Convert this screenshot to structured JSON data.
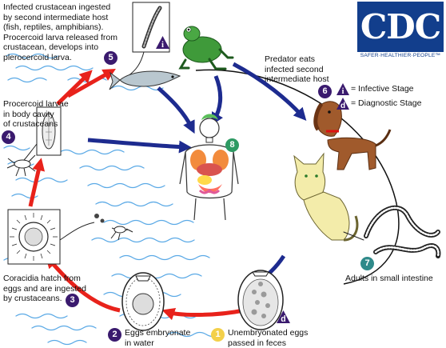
{
  "logo": {
    "text": "CDC",
    "tagline": "SAFER·HEALTHIER·PEOPLE™"
  },
  "legend": {
    "infective": {
      "symbol": "i",
      "label": "= Infective Stage"
    },
    "diagnostic": {
      "symbol": "d",
      "label": "= Diagnostic Stage"
    }
  },
  "steps": {
    "s1": {
      "number": "1",
      "line1": "Unembryonated eggs",
      "line2": "passed in feces"
    },
    "s2": {
      "number": "2",
      "line1": "Eggs embryonate",
      "line2": "in water"
    },
    "s3": {
      "number": "3",
      "line1": "Coracidia hatch from",
      "line2": "eggs and are ingested",
      "line3": "by crustaceans."
    },
    "s4": {
      "number": "4",
      "line1": "Procercoid larvae",
      "line2": "in body cavity",
      "line3": "of crustaceans"
    },
    "s5": {
      "number": "5",
      "line1": "Infected crustacean ingested",
      "line2": "by second intermediate host",
      "line3": "(fish, reptiles, amphibians).",
      "line4": "Procercoid larva released from",
      "line5": "crustacean, develops into",
      "line6": "plerocercoid larva."
    },
    "s6": {
      "number": "6",
      "line1": "Predator eats",
      "line2": "infected second",
      "line3": "intermediate host"
    },
    "s7": {
      "number": "7",
      "line1": "Adults in small intestine"
    },
    "s8": {
      "number": "8"
    }
  },
  "markers": {
    "infective_symbol": "i",
    "diagnostic_symbol": "d"
  },
  "colors": {
    "purple": "#3a1a6e",
    "green": "#2e9a63",
    "yellow": "#f3d04a",
    "teal": "#2f8a8a",
    "red_arrow": "#e8221b",
    "blue_arrow": "#1d2b8f",
    "water": "#5aa9e6",
    "cdc_blue": "#123e8c"
  }
}
